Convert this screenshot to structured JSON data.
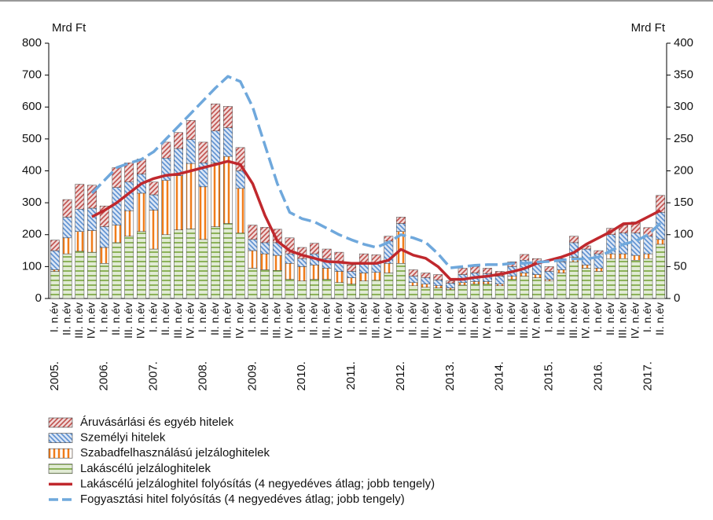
{
  "chart_data": {
    "type": "bar",
    "stacked": true,
    "y_label": "Mrd Ft",
    "y2_label": "Mrd Ft",
    "ylim": [
      0,
      800
    ],
    "yticks": [
      0,
      100,
      200,
      300,
      400,
      500,
      600,
      700,
      800
    ],
    "y2lim": [
      0,
      400
    ],
    "y2ticks": [
      0,
      50,
      100,
      150,
      200,
      250,
      300,
      350,
      400
    ],
    "categories": [
      "I. n.év",
      "II. n.év",
      "III. n.év",
      "IV. n.év",
      "I. n.év",
      "II. n.év",
      "III. n.év",
      "IV. n.év",
      "I. n.év",
      "II. n.év",
      "III. n.év",
      "IV. n.év",
      "I. n.év",
      "II. n.év",
      "III. n.év",
      "IV. n.év",
      "I. n.év",
      "II. n.év",
      "III. n.év",
      "IV. n.év",
      "I. n.év",
      "II. n.év",
      "III. n.év",
      "IV. n.év",
      "I. n.év",
      "II. n.év",
      "III. n.év",
      "IV. n.év",
      "I. n.év",
      "II. n.év",
      "III. n.év",
      "IV. n.év",
      "I. n.év",
      "II. n.év",
      "III. n.év",
      "IV. n.év",
      "I. n.év",
      "II. n.év",
      "III. n.év",
      "IV. n.év",
      "I. n.év",
      "II. n.év",
      "III. n.év",
      "IV. n.év",
      "I. n.év",
      "II. n.év",
      "III. n.év",
      "IV. n.év",
      "I. n.év",
      "II. n.év"
    ],
    "years": [
      "2005.",
      "2006.",
      "2007.",
      "2008.",
      "2009.",
      "2010.",
      "2011.",
      "2012.",
      "2013.",
      "2014.",
      "2015.",
      "2016.",
      "2017."
    ],
    "series": [
      {
        "name": "Lakáscélú jelzáloghitelek",
        "color": "#77a33a",
        "pattern": "horizontal",
        "values": [
          85,
          140,
          148,
          145,
          110,
          175,
          195,
          210,
          155,
          200,
          215,
          218,
          185,
          225,
          235,
          205,
          95,
          90,
          88,
          60,
          55,
          60,
          60,
          50,
          45,
          55,
          57,
          80,
          110,
          40,
          35,
          33,
          28,
          42,
          45,
          45,
          40,
          60,
          70,
          65,
          55,
          80,
          115,
          95,
          85,
          125,
          125,
          120,
          125,
          170
        ]
      },
      {
        "name": "Szabadfelhasználású jelzáloghitelek",
        "color": "#f07c1a",
        "pattern": "vertical",
        "values": [
          5,
          50,
          62,
          68,
          50,
          55,
          80,
          120,
          122,
          170,
          170,
          205,
          165,
          200,
          210,
          140,
          55,
          50,
          47,
          50,
          45,
          45,
          35,
          35,
          20,
          25,
          25,
          30,
          100,
          10,
          10,
          7,
          5,
          8,
          8,
          8,
          5,
          10,
          10,
          10,
          5,
          10,
          15,
          10,
          10,
          15,
          15,
          15,
          15,
          15
        ]
      },
      {
        "name": "Személyi hitelek",
        "color": "#5b8fd0",
        "pattern": "diagonal-down",
        "values": [
          60,
          65,
          70,
          70,
          65,
          118,
          90,
          60,
          48,
          70,
          85,
          75,
          75,
          100,
          90,
          55,
          35,
          35,
          40,
          30,
          25,
          35,
          30,
          30,
          20,
          30,
          28,
          70,
          25,
          20,
          20,
          18,
          15,
          25,
          27,
          25,
          25,
          30,
          40,
          35,
          25,
          25,
          45,
          50,
          45,
          60,
          65,
          70,
          55,
          85
        ]
      },
      {
        "name": "Áruvásárlási és egyéb hitelek",
        "color": "#c0504d",
        "pattern": "diagonal-up",
        "values": [
          33,
          55,
          78,
          72,
          65,
          62,
          60,
          47,
          40,
          50,
          50,
          60,
          65,
          85,
          67,
          73,
          45,
          48,
          42,
          50,
          35,
          33,
          30,
          30,
          20,
          30,
          27,
          15,
          20,
          20,
          15,
          17,
          7,
          20,
          20,
          17,
          15,
          15,
          18,
          15,
          15,
          10,
          20,
          10,
          10,
          20,
          25,
          35,
          27,
          53
        ]
      }
    ],
    "lines": [
      {
        "name": "Lakáscélú jelzáloghitel folyósítás (4 negyedéves átlag; jobb tengely)",
        "color": "#c0282d",
        "dashed": false,
        "axis": "y2",
        "values": [
          null,
          null,
          null,
          128,
          138,
          150,
          165,
          180,
          188,
          193,
          195,
          200,
          205,
          210,
          215,
          210,
          180,
          130,
          90,
          75,
          68,
          63,
          58,
          57,
          55,
          55,
          55,
          60,
          77,
          68,
          63,
          50,
          30,
          30,
          33,
          35,
          38,
          42,
          47,
          55,
          60,
          65,
          72,
          85,
          95,
          105,
          117,
          118,
          128,
          138
        ]
      },
      {
        "name": "Fogyasztási hitel folyósítás (4 negyedéves átlag; jobb tengely)",
        "color": "#6fa8dc",
        "dashed": true,
        "axis": "y2",
        "values": [
          null,
          null,
          null,
          165,
          185,
          205,
          212,
          218,
          230,
          250,
          270,
          290,
          310,
          330,
          348,
          340,
          300,
          240,
          180,
          135,
          125,
          120,
          110,
          100,
          92,
          85,
          80,
          88,
          100,
          95,
          88,
          70,
          48,
          50,
          52,
          53,
          53,
          55,
          55,
          57,
          58,
          60,
          62,
          62,
          65,
          75,
          85,
          90,
          100,
          118
        ]
      }
    ]
  }
}
